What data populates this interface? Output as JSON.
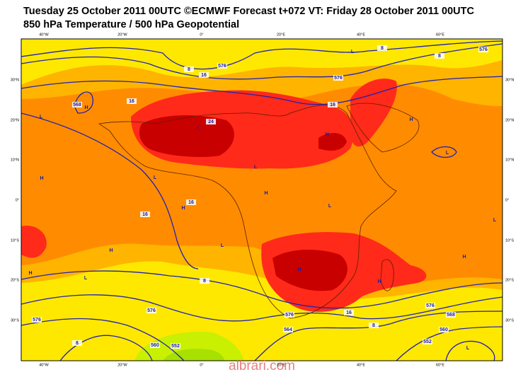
{
  "header": {
    "line1": "Tuesday 25 October 2011 00UTC ©ECMWF Forecast t+072 VT: Friday 28 October 2011 00UTC",
    "line2": "850 hPa Temperature / 500 hPa Geopotential"
  },
  "axes": {
    "longitudes": [
      "40°W",
      "20°W",
      "0°",
      "20°E",
      "40°E",
      "60°E"
    ],
    "latitudes": [
      "30°N",
      "20°N",
      "10°N",
      "0°",
      "10°S",
      "20°S",
      "30°S"
    ]
  },
  "pressure_centres": [
    "L",
    "H",
    "L",
    "H",
    "H",
    "H",
    "L",
    "H",
    "L",
    "H",
    "L",
    "H",
    "L",
    "L",
    "H",
    "L",
    "H",
    "H",
    "L",
    "H",
    "H",
    "L"
  ],
  "contour_labels": [
    "576",
    "8",
    "8",
    "576",
    "16",
    "8",
    "576",
    "16",
    "568",
    "24",
    "16",
    "16",
    "16",
    "8",
    "576",
    "576",
    "8",
    "560",
    "552",
    "576",
    "16",
    "8",
    "564",
    "576",
    "568",
    "560",
    "552"
  ],
  "watermark": "albrari.com"
}
